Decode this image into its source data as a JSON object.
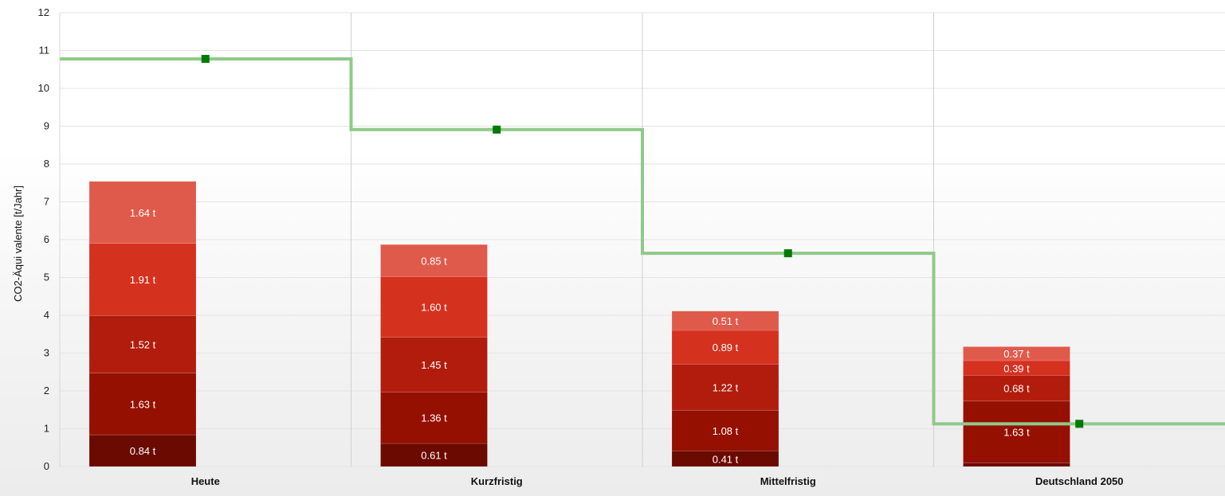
{
  "chart_data": {
    "type": "bar",
    "stacked": true,
    "ylabel": "CO2-Äqui valente [t/Jahr]",
    "ylim": [
      0,
      12
    ],
    "yticks": [
      "0",
      "1",
      "2",
      "3",
      "4",
      "5",
      "6",
      "7",
      "8",
      "9",
      "10",
      "11",
      "12"
    ],
    "categories": [
      "Heute",
      "Kurzfristig",
      "Mittelfristig",
      "Deutschland 2050"
    ],
    "grid": true,
    "segment_colors": [
      "#6b0a00",
      "#951000",
      "#b21c0c",
      "#d5311f",
      "#e05a4b"
    ],
    "line_color": "#8fc98a",
    "marker_color": "#007a00",
    "stacks": [
      {
        "category": "Heute",
        "segments": [
          {
            "value": 0.84,
            "label": "0.84 t"
          },
          {
            "value": 1.63,
            "label": "1.63 t"
          },
          {
            "value": 1.52,
            "label": "1.52 t"
          },
          {
            "value": 1.91,
            "label": "1.91 t"
          },
          {
            "value": 1.64,
            "label": "1.64 t"
          }
        ]
      },
      {
        "category": "Kurzfristig",
        "segments": [
          {
            "value": 0.61,
            "label": "0.61 t"
          },
          {
            "value": 1.36,
            "label": "1.36 t"
          },
          {
            "value": 1.45,
            "label": "1.45 t"
          },
          {
            "value": 1.6,
            "label": "1.60 t"
          },
          {
            "value": 0.85,
            "label": "0.85 t"
          }
        ]
      },
      {
        "category": "Mittelfristig",
        "segments": [
          {
            "value": 0.41,
            "label": "0.41 t"
          },
          {
            "value": 1.08,
            "label": "1.08 t"
          },
          {
            "value": 1.22,
            "label": "1.22 t"
          },
          {
            "value": 0.89,
            "label": "0.89 t"
          },
          {
            "value": 0.51,
            "label": "0.51 t"
          }
        ]
      },
      {
        "category": "Deutschland 2050",
        "segments": [
          {
            "value": 0.1,
            "label": ""
          },
          {
            "value": 1.63,
            "label": "1.63 t"
          },
          {
            "value": 0.68,
            "label": "0.68 t"
          },
          {
            "value": 0.39,
            "label": "0.39 t"
          },
          {
            "value": 0.37,
            "label": "0.37 t"
          }
        ]
      }
    ],
    "target_line": {
      "values": [
        10.78,
        8.91,
        5.64,
        1.13
      ]
    }
  }
}
